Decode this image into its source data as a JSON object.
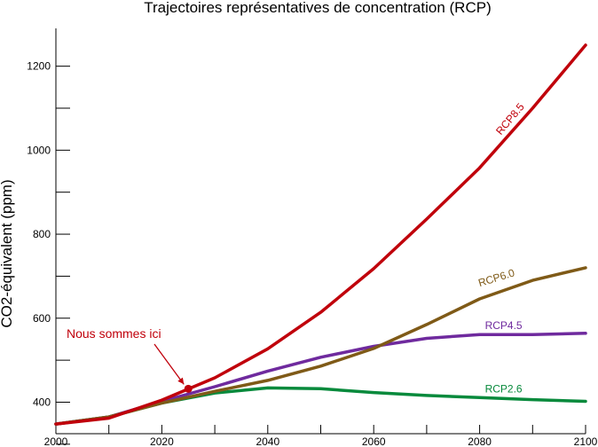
{
  "chart_data": {
    "type": "line",
    "title": "Trajectoires représentatives de concentration (RCP)",
    "xlabel": "",
    "ylabel": "CO2-équivalent (ppm)",
    "xlim": [
      2000,
      2100
    ],
    "ylim": [
      325,
      1290
    ],
    "xticks": [
      2000,
      2020,
      2040,
      2060,
      2080,
      2100
    ],
    "yticks": [
      400,
      600,
      800,
      1000,
      1200
    ],
    "minor_yticks": [
      300,
      500,
      700,
      900,
      1100
    ],
    "minor_xticks": [
      2010,
      2030,
      2050,
      2070,
      2090
    ],
    "grid": false,
    "x": [
      2000,
      2010,
      2020,
      2030,
      2040,
      2050,
      2060,
      2070,
      2080,
      2090,
      2100
    ],
    "series": [
      {
        "name": "RCP8.5",
        "color": "#c0000b",
        "values": [
          348,
          362,
          405,
          458,
          527,
          614,
          718,
          836,
          958,
          1100,
          1250
        ],
        "label_at": [
          2084,
          1035
        ],
        "label_angle": -50
      },
      {
        "name": "RCP6.0",
        "color": "#7f5a17",
        "values": [
          348,
          365,
          398,
          426,
          452,
          486,
          528,
          585,
          646,
          690,
          720
        ],
        "label_at": [
          2080,
          675
        ],
        "label_angle": -17
      },
      {
        "name": "RCP4.5",
        "color": "#6f2a9e",
        "values": [
          348,
          365,
          402,
          437,
          474,
          507,
          533,
          552,
          561,
          561,
          564
        ],
        "label_at": [
          2081,
          574
        ],
        "label_angle": 0
      },
      {
        "name": "RCP2.6",
        "color": "#088a3c",
        "values": [
          348,
          365,
          398,
          422,
          434,
          432,
          423,
          416,
          411,
          406,
          402
        ],
        "label_at": [
          2081,
          423
        ],
        "label_angle": 0
      }
    ],
    "annotations": [
      {
        "text": "Nous sommes ici",
        "color": "#c0000b",
        "point": [
          2025,
          432
        ]
      }
    ]
  }
}
